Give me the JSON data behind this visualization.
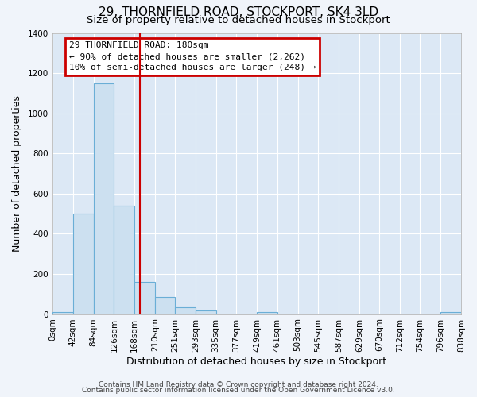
{
  "title": "29, THORNFIELD ROAD, STOCKPORT, SK4 3LD",
  "subtitle": "Size of property relative to detached houses in Stockport",
  "xlabel": "Distribution of detached houses by size in Stockport",
  "ylabel": "Number of detached properties",
  "bar_edges": [
    0,
    42,
    84,
    126,
    168,
    210,
    251,
    293,
    335,
    377,
    419,
    461,
    503,
    545,
    587,
    629,
    670,
    712,
    754,
    796,
    838
  ],
  "bar_heights": [
    10,
    500,
    1150,
    540,
    160,
    85,
    35,
    20,
    0,
    0,
    10,
    0,
    0,
    0,
    0,
    0,
    0,
    0,
    0,
    10
  ],
  "bar_color": "#cce0f0",
  "bar_edge_color": "#6aaed6",
  "property_line_x": 180,
  "property_line_color": "#cc0000",
  "annotation_title": "29 THORNFIELD ROAD: 180sqm",
  "annotation_line1": "← 90% of detached houses are smaller (2,262)",
  "annotation_line2": "10% of semi-detached houses are larger (248) →",
  "annotation_box_edge_color": "#cc0000",
  "annotation_box_fill": "white",
  "ylim": [
    0,
    1400
  ],
  "yticks": [
    0,
    200,
    400,
    600,
    800,
    1000,
    1200,
    1400
  ],
  "xtick_labels": [
    "0sqm",
    "42sqm",
    "84sqm",
    "126sqm",
    "168sqm",
    "210sqm",
    "251sqm",
    "293sqm",
    "335sqm",
    "377sqm",
    "419sqm",
    "461sqm",
    "503sqm",
    "545sqm",
    "587sqm",
    "629sqm",
    "670sqm",
    "712sqm",
    "754sqm",
    "796sqm",
    "838sqm"
  ],
  "footer1": "Contains HM Land Registry data © Crown copyright and database right 2024.",
  "footer2": "Contains public sector information licensed under the Open Government Licence v3.0.",
  "fig_bg_color": "#f0f4fa",
  "plot_bg_color": "#dce8f5",
  "grid_color": "#ffffff",
  "title_fontsize": 11,
  "subtitle_fontsize": 9.5,
  "axis_label_fontsize": 9,
  "tick_fontsize": 7.5,
  "annotation_fontsize": 8,
  "footer_fontsize": 6.5
}
